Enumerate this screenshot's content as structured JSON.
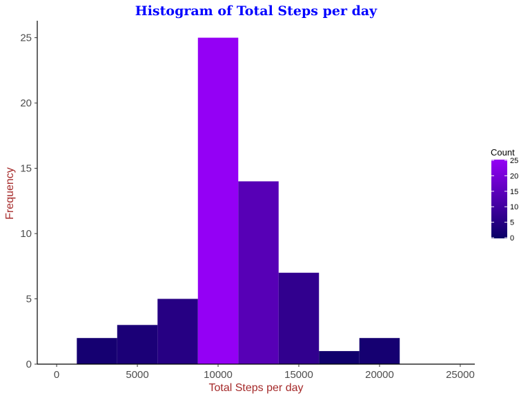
{
  "chart_data": {
    "type": "bar",
    "title": "Histogram of Total Steps per day",
    "xlabel": "Total Steps per day",
    "ylabel": "Frequency",
    "xlim": [
      -1200,
      25900
    ],
    "ylim": [
      0,
      26.3
    ],
    "x_ticks": [
      0,
      5000,
      10000,
      15000,
      20000,
      25000
    ],
    "x_tick_labels": [
      "0",
      "5000",
      "10000",
      "15000",
      "20000",
      "25000"
    ],
    "y_ticks": [
      0,
      5,
      10,
      15,
      20,
      25
    ],
    "y_tick_labels": [
      "0",
      "5",
      "10",
      "15",
      "20",
      "25"
    ],
    "bins": [
      {
        "x0": 1250,
        "x1": 3750,
        "value": 2
      },
      {
        "x0": 3750,
        "x1": 6250,
        "value": 3
      },
      {
        "x0": 6250,
        "x1": 8750,
        "value": 5
      },
      {
        "x0": 8750,
        "x1": 11250,
        "value": 25
      },
      {
        "x0": 11250,
        "x1": 13750,
        "value": 14
      },
      {
        "x0": 13750,
        "x1": 16250,
        "value": 7
      },
      {
        "x0": 16250,
        "x1": 18750,
        "value": 1
      },
      {
        "x0": 18750,
        "x1": 21250,
        "value": 2
      }
    ],
    "grid": false,
    "legend": {
      "title": "Count",
      "position": "right",
      "colors": {
        "low": "#0a0066",
        "high": "#9400f5"
      },
      "range": [
        0,
        25
      ],
      "ticks": [
        0,
        5,
        10,
        15,
        20,
        25
      ],
      "tick_labels": [
        "0",
        "5",
        "10",
        "15",
        "20",
        "25"
      ]
    }
  }
}
